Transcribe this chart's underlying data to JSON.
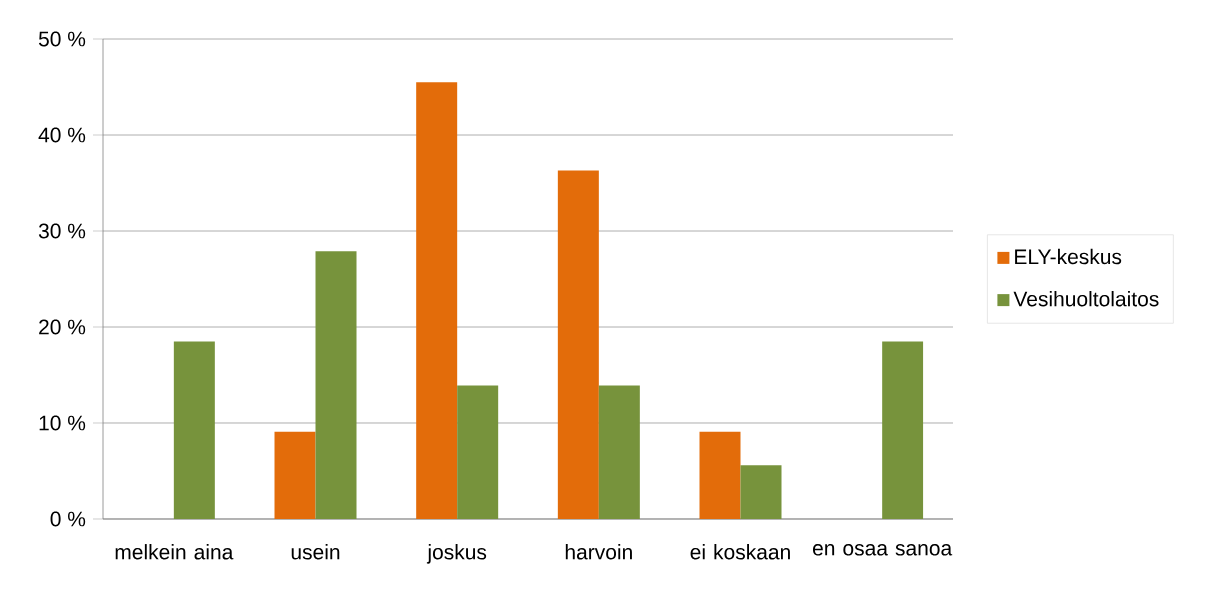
{
  "chart_data": {
    "type": "bar",
    "categories": [
      "melkein aina",
      "usein",
      "joskus",
      "harvoin",
      "ei koskaan",
      "en osaa sanoa"
    ],
    "series": [
      {
        "name": "ELY-keskus",
        "color": "#e36c0a",
        "values": [
          0,
          9.1,
          45.5,
          36.3,
          9.1,
          0
        ]
      },
      {
        "name": "Vesihuoltolaitos",
        "color": "#77933c",
        "values": [
          18.5,
          27.9,
          13.9,
          13.9,
          5.6,
          18.5
        ]
      }
    ],
    "ylim": [
      0,
      50
    ],
    "yticks": [
      {
        "value": 0,
        "label": "0 %"
      },
      {
        "value": 10,
        "label": "10 %"
      },
      {
        "value": 20,
        "label": "20 %"
      },
      {
        "value": 30,
        "label": "30 %"
      },
      {
        "value": 40,
        "label": "40 %"
      },
      {
        "value": 50,
        "label": "50 %"
      }
    ],
    "grid": "y",
    "legend": "right"
  }
}
